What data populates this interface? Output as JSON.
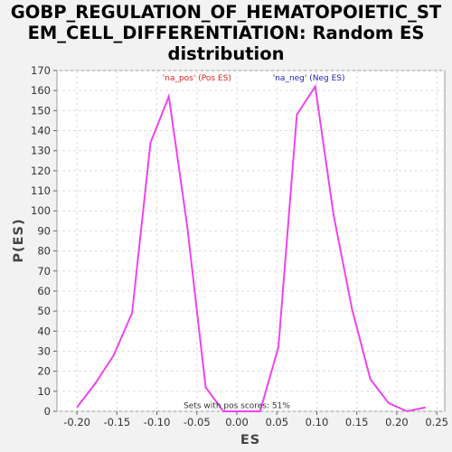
{
  "chart_data": {
    "type": "line",
    "title_lines": [
      "GOBP_REGULATION_OF_HEMATOPOIETIC_ST",
      "EM_CELL_DIFFERENTIATION: Random ES",
      "distribution"
    ],
    "xlabel": "ES",
    "ylabel": "P(ES)",
    "xlim": [
      -0.225,
      0.26
    ],
    "ylim": [
      0,
      170
    ],
    "x_ticks": [
      -0.2,
      -0.15,
      -0.1,
      -0.05,
      0.0,
      0.05,
      0.1,
      0.15,
      0.2,
      0.25
    ],
    "x_tick_labels": [
      "-0.20",
      "-0.15",
      "-0.10",
      "-0.05",
      "0.00",
      "0.05",
      "0.10",
      "0.15",
      "0.20",
      "0.25"
    ],
    "y_ticks": [
      0,
      10,
      20,
      30,
      40,
      50,
      60,
      70,
      80,
      90,
      100,
      110,
      120,
      130,
      140,
      150,
      160,
      170
    ],
    "grid": true,
    "series": [
      {
        "color": "#ee44ee",
        "x": [
          -0.2,
          -0.177,
          -0.154,
          -0.131,
          -0.108,
          -0.085,
          -0.062,
          -0.039,
          -0.017,
          0.006,
          0.029,
          0.052,
          0.075,
          0.098,
          0.121,
          0.144,
          0.167,
          0.19,
          0.213,
          0.236
        ],
        "y": [
          2,
          14,
          28,
          49,
          134,
          157,
          92,
          12,
          0,
          0,
          0,
          32,
          148,
          162,
          98,
          51,
          16,
          4,
          0,
          2
        ]
      }
    ],
    "annotations": [
      {
        "text": "'na_pos' (Pos ES)",
        "x": -0.05,
        "y": 165,
        "color": "#dd2222"
      },
      {
        "text": "'na_neg' (Neg ES)",
        "x": 0.09,
        "y": 165,
        "color": "#2222bb"
      },
      {
        "text": "Sets with pos scores: 51%",
        "x": 0.0,
        "y": 1.5,
        "color": "#333333"
      }
    ]
  }
}
